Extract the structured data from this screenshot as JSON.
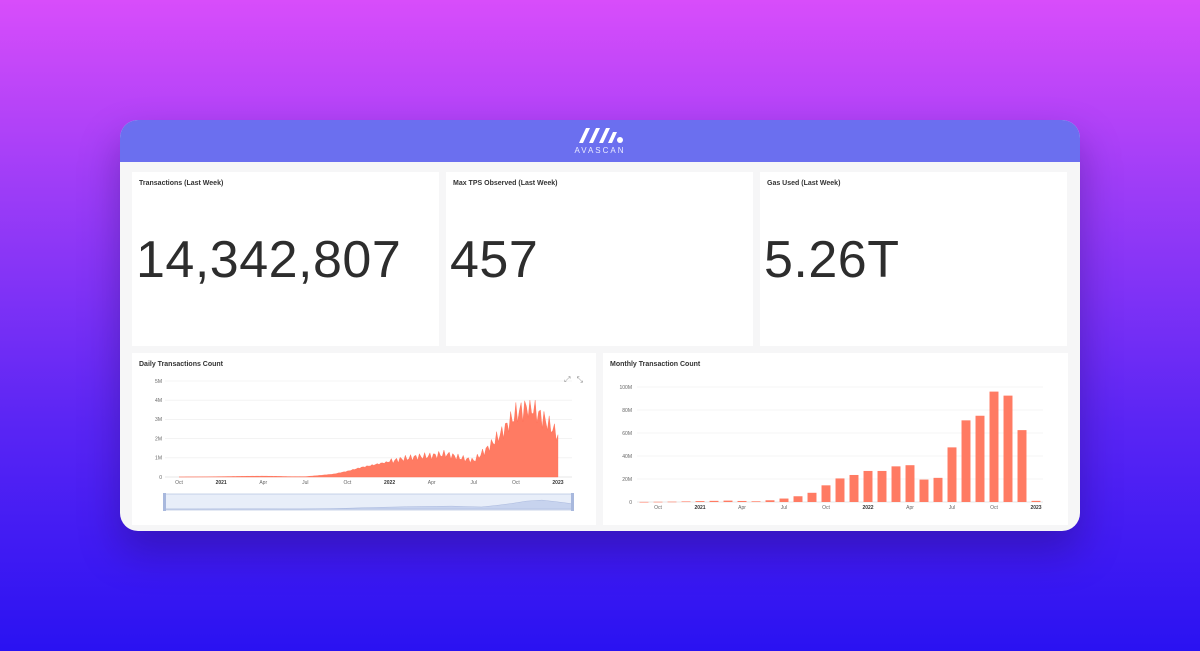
{
  "header": {
    "brand": "AVASCAN",
    "logo_icon": "avascan-logo-icon",
    "background": "#6b6fef"
  },
  "stats": [
    {
      "title": "Transactions (Last Week)",
      "value": "14,342,807"
    },
    {
      "title": "Max TPS Observed (Last Week)",
      "value": "457"
    },
    {
      "title": "Gas Used (Last Week)",
      "value": "5.26T"
    }
  ],
  "daily": {
    "title": "Daily Transactions Count",
    "toolbox_icons": [
      "zoom-icon",
      "zoom-reset-icon"
    ],
    "toolbox_glyph": "⤢ ⤡",
    "color": "#ff7b63"
  },
  "monthly": {
    "title": "Monthly Transaction Count",
    "color": "#ff7b63"
  },
  "chart_data": [
    {
      "type": "area",
      "title": "Daily Transactions Count",
      "ylim": [
        0,
        5000000
      ],
      "yticks": [
        "0",
        "1M",
        "2M",
        "3M",
        "4M",
        "5M"
      ],
      "xticks": [
        "Oct",
        "2021",
        "Apr",
        "Jul",
        "Oct",
        "2022",
        "Apr",
        "Jul",
        "Oct",
        "2023"
      ],
      "x": [
        "2020-10",
        "2020-11",
        "2020-12",
        "2021-01",
        "2021-02",
        "2021-03",
        "2021-04",
        "2021-05",
        "2021-06",
        "2021-07",
        "2021-08",
        "2021-09",
        "2021-10",
        "2021-11",
        "2021-12",
        "2022-01",
        "2022-02",
        "2022-03",
        "2022-04",
        "2022-05",
        "2022-06",
        "2022-07",
        "2022-08",
        "2022-09",
        "2022-10",
        "2022-11",
        "2022-12",
        "2023-01"
      ],
      "series": [
        {
          "values": [
            2000,
            5000,
            10000,
            20000,
            30000,
            40000,
            45000,
            35000,
            20000,
            20000,
            80000,
            150000,
            300000,
            500000,
            650000,
            800000,
            950000,
            1050000,
            1100000,
            1200000,
            1000000,
            850000,
            1500000,
            2300000,
            3300000,
            3700000,
            3000000,
            2200000
          ]
        }
      ]
    },
    {
      "type": "bar",
      "title": "Monthly Transaction Count",
      "ylim": [
        0,
        100000000
      ],
      "yticks": [
        "0",
        "20M",
        "40M",
        "60M",
        "80M",
        "100M"
      ],
      "xticks": [
        "Oct",
        "2021",
        "Apr",
        "Jul",
        "Oct",
        "2022",
        "Apr",
        "Jul",
        "Oct",
        "2023"
      ],
      "categories": [
        "2020-09",
        "2020-10",
        "2020-11",
        "2020-12",
        "2021-01",
        "2021-02",
        "2021-03",
        "2021-04",
        "2021-05",
        "2021-06",
        "2021-07",
        "2021-08",
        "2021-09",
        "2021-10",
        "2021-11",
        "2021-12",
        "2022-01",
        "2022-02",
        "2022-03",
        "2022-04",
        "2022-05",
        "2022-06",
        "2022-07",
        "2022-08",
        "2022-09",
        "2022-10",
        "2022-11",
        "2022-12",
        "2023-01"
      ],
      "values": [
        100000,
        200000,
        300000,
        500000,
        800000,
        1000000,
        1200000,
        900000,
        600000,
        1500000,
        3000000,
        5000000,
        8000000,
        14500000,
        20500000,
        23500000,
        27000000,
        27000000,
        31000000,
        32000000,
        19500000,
        21000000,
        47500000,
        71000000,
        75000000,
        96000000,
        92500000,
        62500000,
        1000000
      ]
    }
  ]
}
